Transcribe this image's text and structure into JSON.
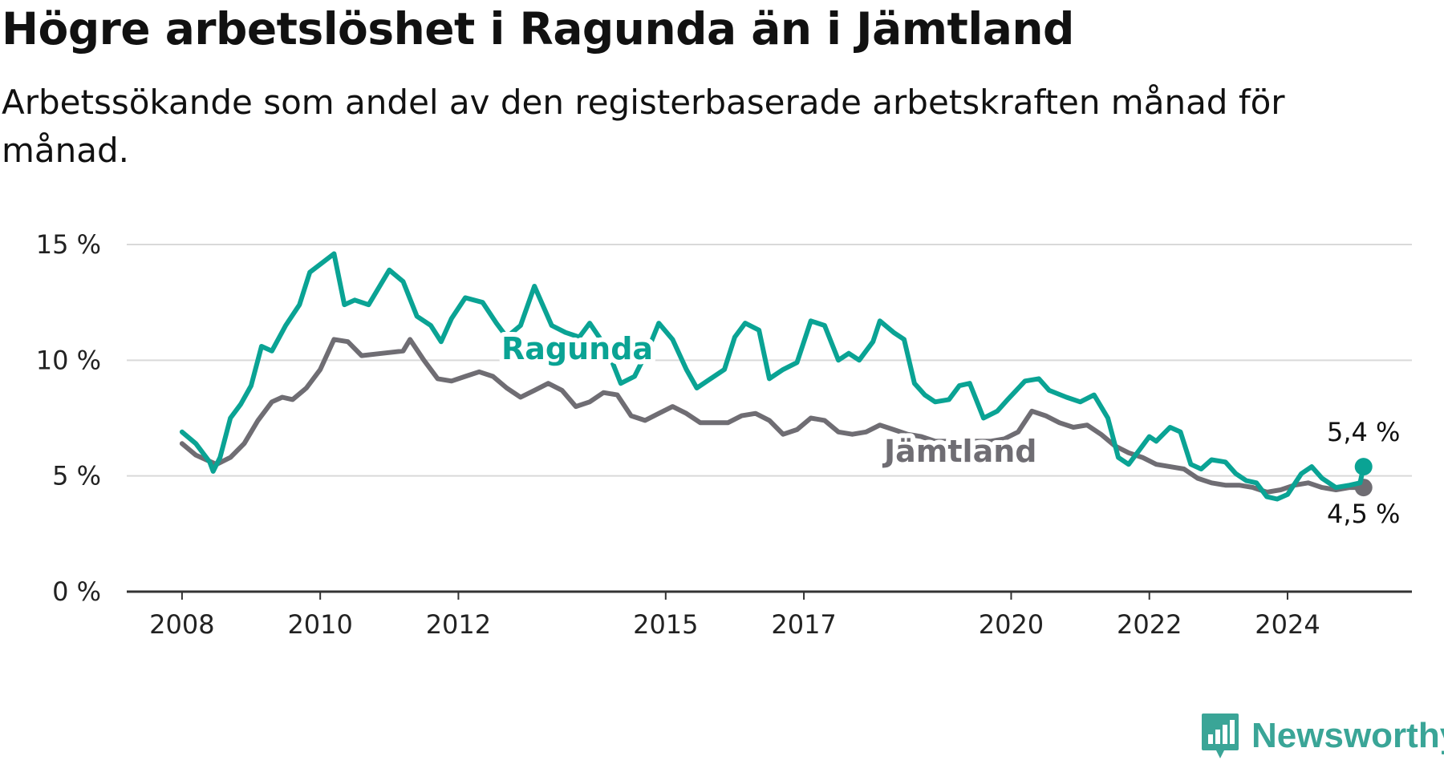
{
  "chart_data": {
    "type": "line",
    "title": "Högre arbetslöshet i Ragunda än i Jämtland",
    "subtitle": "Arbetssökande som andel av den registerbaserade arbetskraften månad för månad.",
    "xlabel": "",
    "ylabel": "",
    "x_ticks": [
      2008,
      2010,
      2012,
      2015,
      2017,
      2020,
      2022,
      2024
    ],
    "y_ticks": [
      0,
      5,
      10,
      15
    ],
    "y_tick_labels": [
      "0 %",
      "5 %",
      "10 %",
      "15 %"
    ],
    "xlim": [
      2007.2,
      2025.8
    ],
    "ylim": [
      0,
      15
    ],
    "grid": true,
    "legend": "inline labels",
    "colors": {
      "Ragunda": "#0aa394",
      "Jämtland": "#6f6d73"
    },
    "series": [
      {
        "name": "Ragunda",
        "end_label": "5,4 %",
        "points": [
          [
            2008.0,
            6.9
          ],
          [
            2008.2,
            6.4
          ],
          [
            2008.4,
            5.6
          ],
          [
            2008.45,
            5.2
          ],
          [
            2008.55,
            5.8
          ],
          [
            2008.7,
            7.5
          ],
          [
            2008.85,
            8.1
          ],
          [
            2009.0,
            8.9
          ],
          [
            2009.15,
            10.6
          ],
          [
            2009.3,
            10.4
          ],
          [
            2009.5,
            11.5
          ],
          [
            2009.7,
            12.4
          ],
          [
            2009.85,
            13.8
          ],
          [
            2010.2,
            14.6
          ],
          [
            2010.35,
            12.4
          ],
          [
            2010.5,
            12.6
          ],
          [
            2010.7,
            12.4
          ],
          [
            2011.0,
            13.9
          ],
          [
            2011.2,
            13.4
          ],
          [
            2011.4,
            11.9
          ],
          [
            2011.6,
            11.5
          ],
          [
            2011.75,
            10.8
          ],
          [
            2011.9,
            11.8
          ],
          [
            2012.1,
            12.7
          ],
          [
            2012.35,
            12.5
          ],
          [
            2012.55,
            11.6
          ],
          [
            2012.7,
            11.0
          ],
          [
            2012.9,
            11.5
          ],
          [
            2013.1,
            13.2
          ],
          [
            2013.35,
            11.5
          ],
          [
            2013.55,
            11.2
          ],
          [
            2013.75,
            11.0
          ],
          [
            2013.9,
            11.6
          ],
          [
            2014.15,
            10.5
          ],
          [
            2014.35,
            9.0
          ],
          [
            2014.55,
            9.3
          ],
          [
            2014.75,
            10.5
          ],
          [
            2014.9,
            11.6
          ],
          [
            2015.1,
            10.9
          ],
          [
            2015.3,
            9.6
          ],
          [
            2015.45,
            8.8
          ],
          [
            2015.65,
            9.2
          ],
          [
            2015.85,
            9.6
          ],
          [
            2016.0,
            11.0
          ],
          [
            2016.15,
            11.6
          ],
          [
            2016.35,
            11.3
          ],
          [
            2016.5,
            9.2
          ],
          [
            2016.7,
            9.6
          ],
          [
            2016.9,
            9.9
          ],
          [
            2017.1,
            11.7
          ],
          [
            2017.3,
            11.5
          ],
          [
            2017.5,
            10.0
          ],
          [
            2017.65,
            10.3
          ],
          [
            2017.8,
            10.0
          ],
          [
            2018.0,
            10.8
          ],
          [
            2018.1,
            11.7
          ],
          [
            2018.3,
            11.2
          ],
          [
            2018.45,
            10.9
          ],
          [
            2018.6,
            9.0
          ],
          [
            2018.75,
            8.5
          ],
          [
            2018.9,
            8.2
          ],
          [
            2019.1,
            8.3
          ],
          [
            2019.25,
            8.9
          ],
          [
            2019.4,
            9.0
          ],
          [
            2019.6,
            7.5
          ],
          [
            2019.8,
            7.8
          ],
          [
            2019.95,
            8.3
          ],
          [
            2020.2,
            9.1
          ],
          [
            2020.4,
            9.2
          ],
          [
            2020.55,
            8.7
          ],
          [
            2020.8,
            8.4
          ],
          [
            2021.0,
            8.2
          ],
          [
            2021.2,
            8.5
          ],
          [
            2021.4,
            7.5
          ],
          [
            2021.55,
            5.8
          ],
          [
            2021.7,
            5.5
          ],
          [
            2021.85,
            6.1
          ],
          [
            2022.0,
            6.7
          ],
          [
            2022.1,
            6.5
          ],
          [
            2022.3,
            7.1
          ],
          [
            2022.45,
            6.9
          ],
          [
            2022.6,
            5.5
          ],
          [
            2022.75,
            5.3
          ],
          [
            2022.9,
            5.7
          ],
          [
            2023.1,
            5.6
          ],
          [
            2023.25,
            5.1
          ],
          [
            2023.4,
            4.8
          ],
          [
            2023.55,
            4.7
          ],
          [
            2023.7,
            4.1
          ],
          [
            2023.85,
            4.0
          ],
          [
            2024.0,
            4.2
          ],
          [
            2024.2,
            5.1
          ],
          [
            2024.35,
            5.4
          ],
          [
            2024.5,
            4.9
          ],
          [
            2024.7,
            4.5
          ],
          [
            2024.9,
            4.6
          ],
          [
            2025.05,
            4.7
          ],
          [
            2025.1,
            5.4
          ]
        ]
      },
      {
        "name": "Jämtland",
        "end_label": "4,5 %",
        "points": [
          [
            2008.0,
            6.4
          ],
          [
            2008.2,
            5.9
          ],
          [
            2008.35,
            5.7
          ],
          [
            2008.5,
            5.5
          ],
          [
            2008.7,
            5.8
          ],
          [
            2008.9,
            6.4
          ],
          [
            2009.1,
            7.4
          ],
          [
            2009.3,
            8.2
          ],
          [
            2009.45,
            8.4
          ],
          [
            2009.6,
            8.3
          ],
          [
            2009.8,
            8.8
          ],
          [
            2010.0,
            9.6
          ],
          [
            2010.2,
            10.9
          ],
          [
            2010.4,
            10.8
          ],
          [
            2010.6,
            10.2
          ],
          [
            2010.9,
            10.3
          ],
          [
            2011.2,
            10.4
          ],
          [
            2011.3,
            10.9
          ],
          [
            2011.5,
            10.0
          ],
          [
            2011.7,
            9.2
          ],
          [
            2011.9,
            9.1
          ],
          [
            2012.1,
            9.3
          ],
          [
            2012.3,
            9.5
          ],
          [
            2012.5,
            9.3
          ],
          [
            2012.7,
            8.8
          ],
          [
            2012.9,
            8.4
          ],
          [
            2013.1,
            8.7
          ],
          [
            2013.3,
            9.0
          ],
          [
            2013.5,
            8.7
          ],
          [
            2013.7,
            8.0
          ],
          [
            2013.9,
            8.2
          ],
          [
            2014.1,
            8.6
          ],
          [
            2014.3,
            8.5
          ],
          [
            2014.5,
            7.6
          ],
          [
            2014.7,
            7.4
          ],
          [
            2014.9,
            7.7
          ],
          [
            2015.1,
            8.0
          ],
          [
            2015.3,
            7.7
          ],
          [
            2015.5,
            7.3
          ],
          [
            2015.7,
            7.3
          ],
          [
            2015.9,
            7.3
          ],
          [
            2016.1,
            7.6
          ],
          [
            2016.3,
            7.7
          ],
          [
            2016.5,
            7.4
          ],
          [
            2016.7,
            6.8
          ],
          [
            2016.9,
            7.0
          ],
          [
            2017.1,
            7.5
          ],
          [
            2017.3,
            7.4
          ],
          [
            2017.5,
            6.9
          ],
          [
            2017.7,
            6.8
          ],
          [
            2017.9,
            6.9
          ],
          [
            2018.1,
            7.2
          ],
          [
            2018.3,
            7.0
          ],
          [
            2018.5,
            6.8
          ],
          [
            2018.7,
            6.7
          ],
          [
            2018.9,
            6.5
          ],
          [
            2019.1,
            6.5
          ],
          [
            2019.3,
            6.5
          ],
          [
            2019.5,
            6.5
          ],
          [
            2019.7,
            6.5
          ],
          [
            2019.9,
            6.6
          ],
          [
            2020.1,
            6.9
          ],
          [
            2020.3,
            7.8
          ],
          [
            2020.5,
            7.6
          ],
          [
            2020.7,
            7.3
          ],
          [
            2020.9,
            7.1
          ],
          [
            2021.1,
            7.2
          ],
          [
            2021.3,
            6.8
          ],
          [
            2021.5,
            6.3
          ],
          [
            2021.7,
            6.0
          ],
          [
            2021.9,
            5.8
          ],
          [
            2022.1,
            5.5
          ],
          [
            2022.3,
            5.4
          ],
          [
            2022.5,
            5.3
          ],
          [
            2022.7,
            4.9
          ],
          [
            2022.9,
            4.7
          ],
          [
            2023.1,
            4.6
          ],
          [
            2023.3,
            4.6
          ],
          [
            2023.5,
            4.5
          ],
          [
            2023.7,
            4.3
          ],
          [
            2023.9,
            4.4
          ],
          [
            2024.1,
            4.6
          ],
          [
            2024.3,
            4.7
          ],
          [
            2024.5,
            4.5
          ],
          [
            2024.7,
            4.4
          ],
          [
            2024.9,
            4.5
          ],
          [
            2025.1,
            4.5
          ]
        ]
      }
    ]
  },
  "brand": {
    "name": "Newsworthy",
    "icon": "newsworthy-logo-icon"
  }
}
